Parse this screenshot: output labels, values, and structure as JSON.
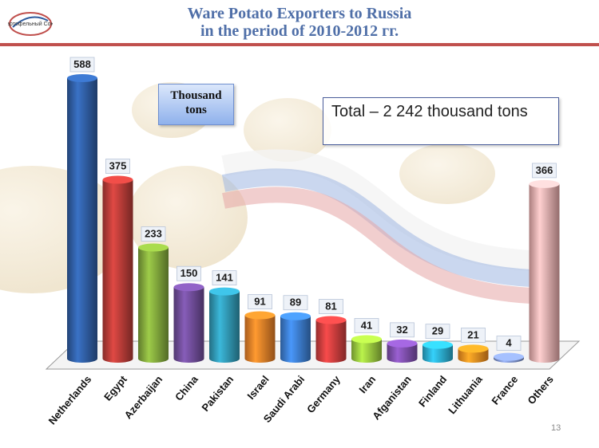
{
  "header": {
    "title_line1": "Ware Potato Exporters to Russia",
    "title_line2": "in the period of 2010-2012 гг.",
    "accent_color": "#c0504d",
    "title_color": "#4f6fa8",
    "logo_icon": "potato-union-logo",
    "logo_text": "Картофельный Союз"
  },
  "unit_box": {
    "text": "Thousand tons"
  },
  "total_box": {
    "text": "Total – 2 242 thousand tons"
  },
  "page_number": "13",
  "chart_data": {
    "type": "bar",
    "unit": "Thousand tons",
    "categories": [
      "Netherlands",
      "Egypt",
      "Azerbaijan",
      "China",
      "Pakistan",
      "Israel",
      "Saudi Arabi",
      "Germany",
      "Iran",
      "Afganistan",
      "Finland",
      "Lithuania",
      "France",
      "Others"
    ],
    "values": [
      588,
      375,
      233,
      150,
      141,
      91,
      89,
      81,
      41,
      32,
      29,
      21,
      4,
      366
    ],
    "colors": [
      "#2e5b9e",
      "#b33a36",
      "#7ea33a",
      "#6c4a94",
      "#2f93ae",
      "#e07b26",
      "#3a79c8",
      "#c63c3c",
      "#95c23d",
      "#7b4da8",
      "#2aa7c9",
      "#ef8a1f",
      "#7b8fc6",
      "#e2a6a6"
    ],
    "ylim": [
      0,
      600
    ],
    "grid": false,
    "legend": "none",
    "style": "3d-cylinder"
  }
}
